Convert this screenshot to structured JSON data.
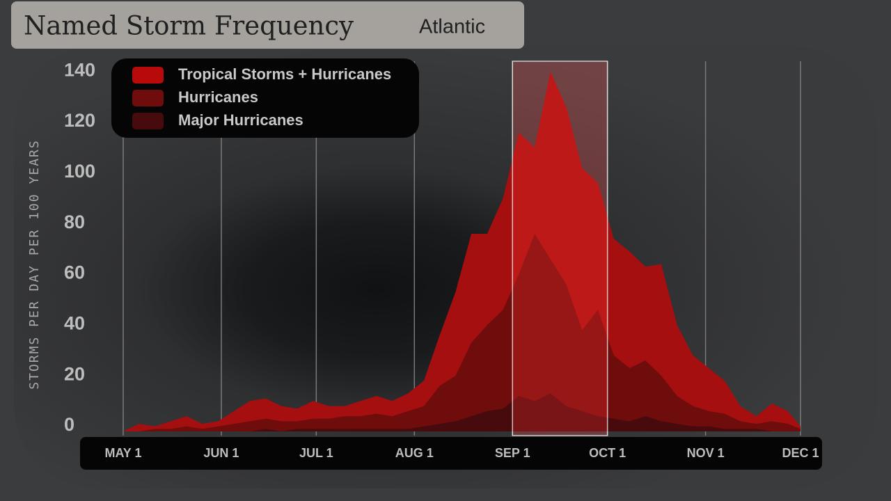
{
  "chart_data": {
    "type": "area",
    "title": "Named Storm Frequency",
    "subtitle": "Atlantic",
    "y_label": "STORMS PER DAY PER 100 YEARS",
    "x": [
      0,
      5,
      10,
      15,
      20,
      25,
      30,
      35,
      40,
      45,
      50,
      55,
      60,
      65,
      70,
      75,
      80,
      85,
      90,
      95,
      100,
      105,
      110,
      115,
      120,
      125,
      130,
      135,
      140,
      145,
      150,
      155,
      160,
      165,
      170,
      175,
      180,
      185,
      190,
      195,
      200,
      205,
      210,
      214
    ],
    "series": [
      {
        "name": "Tropical Storms + Hurricanes",
        "color": "#a50f0f",
        "values": [
          0,
          3,
          2,
          4,
          6,
          3,
          4,
          8,
          12,
          13,
          10,
          9,
          12,
          10,
          10,
          12,
          14,
          12,
          15,
          20,
          38,
          55,
          78,
          78,
          92,
          118,
          112,
          142,
          128,
          104,
          98,
          76,
          71,
          65,
          66,
          42,
          30,
          25,
          20,
          10,
          6,
          11,
          8,
          2
        ]
      },
      {
        "name": "Hurricanes",
        "color": "#6f0d0d",
        "values": [
          0,
          0,
          1,
          1,
          2,
          1,
          2,
          3,
          4,
          5,
          4,
          4,
          5,
          5,
          6,
          6,
          7,
          6,
          8,
          10,
          18,
          22,
          35,
          42,
          48,
          62,
          78,
          68,
          58,
          40,
          48,
          30,
          25,
          28,
          22,
          14,
          10,
          8,
          7,
          4,
          3,
          4,
          3,
          1
        ]
      },
      {
        "name": "Major Hurricanes",
        "color": "#470a0d",
        "values": [
          0,
          0,
          0,
          0,
          0,
          0,
          0,
          0,
          0,
          1,
          0,
          1,
          1,
          1,
          1,
          1,
          1,
          1,
          1,
          2,
          3,
          4,
          6,
          8,
          9,
          14,
          12,
          15,
          10,
          8,
          6,
          5,
          4,
          6,
          4,
          3,
          2,
          2,
          1,
          1,
          1,
          0,
          0,
          0
        ]
      }
    ],
    "xlim": [
      0,
      214
    ],
    "xticks": [
      {
        "value": 0,
        "label": "MAY 1"
      },
      {
        "value": 31,
        "label": "JUN 1"
      },
      {
        "value": 61,
        "label": "JUL 1"
      },
      {
        "value": 92,
        "label": "AUG 1"
      },
      {
        "value": 123,
        "label": "SEP 1"
      },
      {
        "value": 153,
        "label": "OCT 1"
      },
      {
        "value": 184,
        "label": "NOV 1"
      },
      {
        "value": 214,
        "label": "DEC 1"
      }
    ],
    "ylim": [
      0,
      145
    ],
    "yticks": [
      0,
      20,
      40,
      60,
      80,
      100,
      120,
      140
    ],
    "grid": "x",
    "legend_position": "top-left"
  }
}
